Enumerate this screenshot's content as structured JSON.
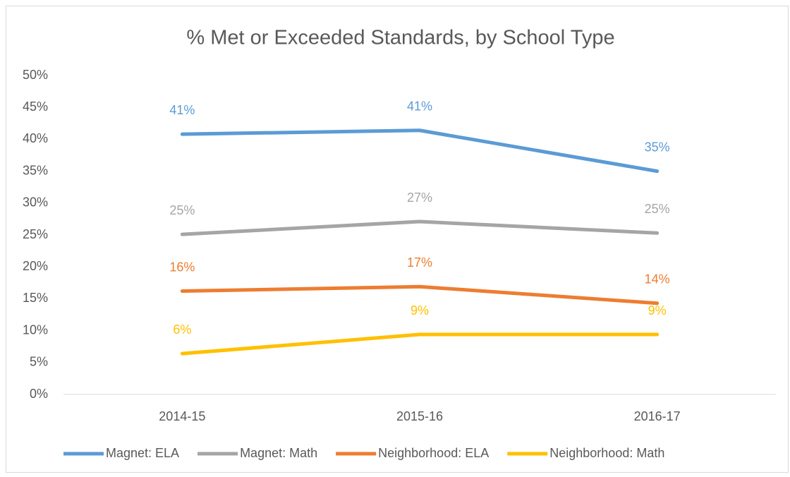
{
  "chart_data": {
    "type": "line",
    "title": "% Met or Exceeded Standards, by School Type",
    "categories": [
      "2014-15",
      "2015-16",
      "2016-17"
    ],
    "series": [
      {
        "name": "Magnet: ELA",
        "color": "#5b9bd5",
        "values": [
          40.8,
          41.4,
          35.0
        ],
        "value_labels": [
          "41%",
          "41%",
          "35%"
        ]
      },
      {
        "name": "Magnet: Math",
        "color": "#a5a5a5",
        "values": [
          25.1,
          27.1,
          25.3
        ],
        "value_labels": [
          "25%",
          "27%",
          "25%"
        ]
      },
      {
        "name": "Neighborhood: ELA",
        "color": "#ed7d31",
        "values": [
          16.2,
          16.9,
          14.3
        ],
        "value_labels": [
          "16%",
          "17%",
          "14%"
        ]
      },
      {
        "name": "Neighborhood: Math",
        "color": "#ffc000",
        "values": [
          6.4,
          9.4,
          9.4
        ],
        "value_labels": [
          "6%",
          "9%",
          "9%"
        ]
      }
    ],
    "ylim": [
      0,
      50
    ],
    "yticks": [
      {
        "value": 0,
        "label": "0%"
      },
      {
        "value": 5,
        "label": "5%"
      },
      {
        "value": 10,
        "label": "10%"
      },
      {
        "value": 15,
        "label": "15%"
      },
      {
        "value": 20,
        "label": "20%"
      },
      {
        "value": 25,
        "label": "25%"
      },
      {
        "value": 30,
        "label": "30%"
      },
      {
        "value": 35,
        "label": "35%"
      },
      {
        "value": 40,
        "label": "40%"
      },
      {
        "value": 45,
        "label": "45%"
      },
      {
        "value": 50,
        "label": "50%"
      }
    ],
    "grid": false,
    "legend": "bottom"
  }
}
